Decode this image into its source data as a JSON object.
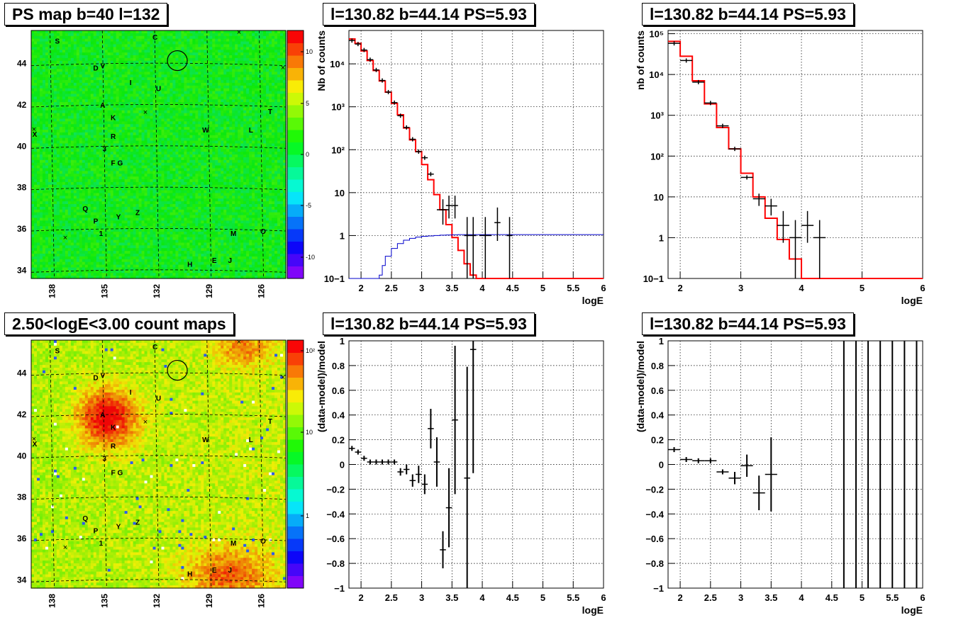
{
  "panels": {
    "map_top": {
      "title": "PS map b=40 l=132"
    },
    "spec_mid": {
      "title": "l=130.82 b=44.14 PS=5.93"
    },
    "spec_right": {
      "title": "l=130.82 b=44.14 PS=5.93"
    },
    "map_bottom": {
      "title": "2.50<logE<3.00 count maps"
    },
    "res_mid": {
      "title": "l=130.82 b=44.14 PS=5.93"
    },
    "res_right": {
      "title": "l=130.82 b=44.14 PS=5.93"
    }
  },
  "colors": {
    "model": "#ff0000",
    "background_model": "#0000cc",
    "data": "#000000"
  },
  "chart_data": [
    {
      "id": "map_top",
      "type": "heatmap",
      "title": "PS map b=40 l=132",
      "x_ticks": [
        "138",
        "135",
        "132",
        "129",
        "126"
      ],
      "y_ticks": [
        "34",
        "36",
        "38",
        "40",
        "42",
        "44"
      ],
      "colorbar_ticks": [
        "10",
        "5",
        "0",
        "-5",
        "-10"
      ],
      "colorbar_range": [
        -12,
        12
      ],
      "sources": [
        {
          "label": "S",
          "l": 137.7,
          "b": 45.1
        },
        {
          "label": "C",
          "l": 132.1,
          "b": 45.3
        },
        {
          "label": "D",
          "l": 135.5,
          "b": 43.8
        },
        {
          "label": "V",
          "l": 135.1,
          "b": 43.9
        },
        {
          "label": "I",
          "l": 133.5,
          "b": 43.1
        },
        {
          "label": "U",
          "l": 131.9,
          "b": 42.8
        },
        {
          "label": "A",
          "l": 135.1,
          "b": 42.0
        },
        {
          "label": "T",
          "l": 125.5,
          "b": 41.7
        },
        {
          "label": "K",
          "l": 134.5,
          "b": 41.4
        },
        {
          "label": "W",
          "l": 129.2,
          "b": 40.8
        },
        {
          "label": "L",
          "l": 126.6,
          "b": 40.8
        },
        {
          "label": "R",
          "l": 134.5,
          "b": 40.5
        },
        {
          "label": "X",
          "l": 139.0,
          "b": 40.6
        },
        {
          "label": "3",
          "l": 135.0,
          "b": 39.9
        },
        {
          "label": "F",
          "l": 134.5,
          "b": 39.2
        },
        {
          "label": "G",
          "l": 134.1,
          "b": 39.2
        },
        {
          "label": "Q",
          "l": 136.1,
          "b": 37.0
        },
        {
          "label": "P",
          "l": 135.5,
          "b": 36.4
        },
        {
          "label": "Y",
          "l": 134.2,
          "b": 36.6
        },
        {
          "label": "Z",
          "l": 133.1,
          "b": 36.8
        },
        {
          "label": "1",
          "l": 135.2,
          "b": 35.8
        },
        {
          "label": "M",
          "l": 127.6,
          "b": 35.8
        },
        {
          "label": "O",
          "l": 125.9,
          "b": 35.9
        },
        {
          "label": "H",
          "l": 130.1,
          "b": 34.3
        },
        {
          "label": "E",
          "l": 128.7,
          "b": 34.5
        },
        {
          "label": "J",
          "l": 127.8,
          "b": 34.5
        }
      ],
      "circle": {
        "l": 130.82,
        "b": 44.14
      }
    },
    {
      "id": "spec_mid",
      "type": "line",
      "title": "l=130.82 b=44.14 PS=5.93",
      "xlabel": "logE",
      "ylabel": "Nb of counts",
      "log_y": true,
      "xlim": [
        1.8,
        6.0
      ],
      "ylim": [
        0.1,
        60000
      ],
      "x_ticks": [
        "2",
        "2.5",
        "3",
        "3.5",
        "4",
        "4.5",
        "5",
        "5.5",
        "6"
      ],
      "y_ticks": [
        "10−1",
        "1",
        "10",
        "10²",
        "10³",
        "10⁴"
      ],
      "series": [
        {
          "role": "model",
          "bin_edges": [
            1.8,
            1.9,
            2.0,
            2.1,
            2.2,
            2.3,
            2.4,
            2.5,
            2.6,
            2.7,
            2.8,
            2.9,
            3.0,
            3.1,
            3.2,
            3.3,
            3.4,
            3.5,
            3.6,
            3.7,
            3.8,
            3.9,
            4.0,
            4.1,
            4.2,
            6.0
          ],
          "values": [
            38000,
            30000,
            20000,
            12000,
            7000,
            4000,
            2200,
            1200,
            650,
            320,
            170,
            90,
            45,
            20,
            9,
            4,
            1.8,
            0.9,
            0.45,
            0.22,
            0.12,
            0.1,
            0.1,
            0.1,
            0.1
          ]
        },
        {
          "role": "background",
          "bin_edges": [
            1.8,
            2.3,
            2.35,
            2.4,
            2.5,
            2.6,
            2.7,
            2.8,
            2.9,
            3.0,
            3.1,
            3.2,
            3.3,
            3.4,
            3.5,
            3.6,
            6.0
          ],
          "values": [
            0.1,
            0.12,
            0.2,
            0.33,
            0.5,
            0.65,
            0.78,
            0.86,
            0.92,
            0.96,
            0.98,
            1.0,
            1.02,
            1.03,
            1.04,
            1.05
          ]
        },
        {
          "role": "data",
          "points": [
            {
              "x": 1.85,
              "y": 35000,
              "xerr": 0.05
            },
            {
              "x": 1.95,
              "y": 29000,
              "xerr": 0.05
            },
            {
              "x": 2.05,
              "y": 21000,
              "xerr": 0.05
            },
            {
              "x": 2.15,
              "y": 12500,
              "xerr": 0.05
            },
            {
              "x": 2.25,
              "y": 7200,
              "xerr": 0.05
            },
            {
              "x": 2.35,
              "y": 4100,
              "xerr": 0.05
            },
            {
              "x": 2.45,
              "y": 2200,
              "xerr": 0.05
            },
            {
              "x": 2.55,
              "y": 1250,
              "xerr": 0.05
            },
            {
              "x": 2.65,
              "y": 620,
              "xerr": 0.05
            },
            {
              "x": 2.75,
              "y": 330,
              "xerr": 0.05
            },
            {
              "x": 2.85,
              "y": 175,
              "xerr": 0.05
            },
            {
              "x": 2.95,
              "y": 90,
              "xerr": 0.05
            },
            {
              "x": 3.05,
              "y": 65,
              "xerr": 0.05
            },
            {
              "x": 3.15,
              "y": 27,
              "xerr": 0.05
            },
            {
              "x": 3.35,
              "y": 4,
              "xerr": 0.1,
              "ylo": 1.8,
              "yhi": 7
            },
            {
              "x": 3.45,
              "y": 5,
              "xerr": 0.05,
              "ylo": 2.5,
              "yhi": 8.5
            },
            {
              "x": 3.55,
              "y": 5,
              "xerr": 0.05,
              "ylo": 2.5,
              "yhi": 8.5
            },
            {
              "x": 3.75,
              "y": 1,
              "xerr": 0.05,
              "ylo": 0.1,
              "yhi": 2.7
            },
            {
              "x": 3.85,
              "y": 1,
              "xerr": 0.05,
              "ylo": 0.1,
              "yhi": 2.7
            },
            {
              "x": 4.05,
              "y": 1,
              "xerr": 0.1,
              "ylo": 0.1,
              "yhi": 2.7
            },
            {
              "x": 4.25,
              "y": 2,
              "xerr": 0.05,
              "ylo": 0.75,
              "yhi": 4.5
            },
            {
              "x": 4.45,
              "y": 1,
              "xerr": 0.05,
              "ylo": 0.1,
              "yhi": 2.7
            }
          ]
        }
      ]
    },
    {
      "id": "spec_right",
      "type": "line",
      "title": "l=130.82 b=44.14 PS=5.93",
      "xlabel": "logE",
      "ylabel": "nb of counts",
      "log_y": true,
      "xlim": [
        1.8,
        6.0
      ],
      "ylim": [
        0.1,
        120000
      ],
      "x_ticks": [
        "2",
        "3",
        "4",
        "5",
        "6"
      ],
      "y_ticks": [
        "10−1",
        "1",
        "10",
        "10²",
        "10³",
        "10⁴",
        "10⁵"
      ],
      "series": [
        {
          "role": "model",
          "bin_edges": [
            1.8,
            2.0,
            2.2,
            2.4,
            2.6,
            2.8,
            3.0,
            3.2,
            3.4,
            3.6,
            3.8,
            4.0,
            4.2,
            6.0
          ],
          "values": [
            65000,
            28000,
            7000,
            1900,
            500,
            150,
            38,
            10,
            3,
            0.9,
            0.3,
            0.1,
            0.1
          ]
        },
        {
          "role": "data",
          "points": [
            {
              "x": 1.9,
              "y": 58000,
              "xerr": 0.1
            },
            {
              "x": 2.1,
              "y": 22000,
              "xerr": 0.1
            },
            {
              "x": 2.3,
              "y": 6500,
              "xerr": 0.1
            },
            {
              "x": 2.5,
              "y": 2000,
              "xerr": 0.1
            },
            {
              "x": 2.7,
              "y": 550,
              "xerr": 0.1
            },
            {
              "x": 2.9,
              "y": 150,
              "xerr": 0.1
            },
            {
              "x": 3.1,
              "y": 30,
              "xerr": 0.1
            },
            {
              "x": 3.3,
              "y": 9,
              "xerr": 0.1,
              "ylo": 6,
              "yhi": 12
            },
            {
              "x": 3.5,
              "y": 6,
              "xerr": 0.1,
              "ylo": 3.5,
              "yhi": 9
            },
            {
              "x": 3.7,
              "y": 2,
              "xerr": 0.1,
              "ylo": 0.75,
              "yhi": 4.5
            },
            {
              "x": 3.9,
              "y": 1,
              "xerr": 0.1,
              "ylo": 0.1,
              "yhi": 2.7
            },
            {
              "x": 4.1,
              "y": 2,
              "xerr": 0.1,
              "ylo": 0.75,
              "yhi": 4.5
            },
            {
              "x": 4.3,
              "y": 1,
              "xerr": 0.1,
              "ylo": 0.1,
              "yhi": 2.7
            }
          ]
        }
      ]
    },
    {
      "id": "map_bottom",
      "type": "heatmap",
      "title": "2.50<logE<3.00 count maps",
      "x_ticks": [
        "138",
        "135",
        "132",
        "129",
        "126"
      ],
      "y_ticks": [
        "34",
        "36",
        "38",
        "40",
        "42",
        "44"
      ],
      "colorbar_ticks": [
        "10²",
        "10",
        "1"
      ],
      "log_color": true
    },
    {
      "id": "res_mid",
      "type": "scatter",
      "title": "l=130.82 b=44.14 PS=5.93",
      "xlabel": "logE",
      "ylabel": "(data-model)/model",
      "xlim": [
        1.8,
        6.0
      ],
      "ylim": [
        -1,
        1
      ],
      "x_ticks": [
        "2",
        "2.5",
        "3",
        "3.5",
        "4",
        "4.5",
        "5",
        "5.5",
        "6"
      ],
      "y_ticks": [
        "1",
        "0.8",
        "0.6",
        "0.4",
        "0.2",
        "0",
        "-0.2",
        "-0.4",
        "-0.6",
        "-0.8",
        "-1"
      ],
      "points": [
        {
          "x": 1.85,
          "y": 0.13,
          "xerr": 0.05,
          "yerr": 0.02
        },
        {
          "x": 1.95,
          "y": 0.1,
          "xerr": 0.05,
          "yerr": 0.02
        },
        {
          "x": 2.05,
          "y": 0.05,
          "xerr": 0.05,
          "yerr": 0.02
        },
        {
          "x": 2.15,
          "y": 0.02,
          "xerr": 0.05,
          "yerr": 0.02
        },
        {
          "x": 2.25,
          "y": 0.02,
          "xerr": 0.05,
          "yerr": 0.02
        },
        {
          "x": 2.35,
          "y": 0.02,
          "xerr": 0.05,
          "yerr": 0.02
        },
        {
          "x": 2.45,
          "y": 0.02,
          "xerr": 0.05,
          "yerr": 0.02
        },
        {
          "x": 2.55,
          "y": 0.02,
          "xerr": 0.05,
          "yerr": 0.02
        },
        {
          "x": 2.65,
          "y": -0.06,
          "xerr": 0.05,
          "yerr": 0.03
        },
        {
          "x": 2.75,
          "y": -0.04,
          "xerr": 0.05,
          "yerr": 0.04
        },
        {
          "x": 2.85,
          "y": -0.13,
          "xerr": 0.05,
          "yerr": 0.05
        },
        {
          "x": 2.95,
          "y": -0.08,
          "xerr": 0.05,
          "yerr": 0.07
        },
        {
          "x": 3.05,
          "y": -0.16,
          "xerr": 0.05,
          "yerr": 0.08
        },
        {
          "x": 3.15,
          "y": 0.29,
          "xerr": 0.05,
          "yerr": 0.16
        },
        {
          "x": 3.25,
          "y": 0.02,
          "xerr": 0.05,
          "yerr": 0.2
        },
        {
          "x": 3.35,
          "y": -0.69,
          "xerr": 0.05,
          "yerr": 0.15
        },
        {
          "x": 3.45,
          "y": -0.35,
          "xerr": 0.05,
          "yerr": 0.32
        },
        {
          "x": 3.55,
          "y": 0.36,
          "xerr": 0.05,
          "yerr": 0.6
        },
        {
          "x": 3.75,
          "y": -0.11,
          "xerr": 0.05,
          "yerr": 0.9
        },
        {
          "x": 3.85,
          "y": 0.93,
          "xerr": 0.05,
          "yerr": 1.0
        }
      ]
    },
    {
      "id": "res_right",
      "type": "scatter",
      "title": "l=130.82 b=44.14 PS=5.93",
      "xlabel": "logE",
      "ylabel": "(data-model)/model",
      "xlim": [
        1.8,
        6.0
      ],
      "ylim": [
        -1,
        1
      ],
      "x_ticks": [
        "2",
        "2.5",
        "3",
        "3.5",
        "4",
        "4.5",
        "5",
        "5.5",
        "6"
      ],
      "y_ticks": [
        "1",
        "0.8",
        "0.6",
        "0.4",
        "0.2",
        "0",
        "-0.2",
        "-0.4",
        "-0.6",
        "-0.8",
        "-1"
      ],
      "points": [
        {
          "x": 1.9,
          "y": 0.12,
          "xerr": 0.1,
          "yerr": 0.02
        },
        {
          "x": 2.1,
          "y": 0.04,
          "xerr": 0.1,
          "yerr": 0.02
        },
        {
          "x": 2.3,
          "y": 0.03,
          "xerr": 0.1,
          "yerr": 0.02
        },
        {
          "x": 2.5,
          "y": 0.03,
          "xerr": 0.1,
          "yerr": 0.02
        },
        {
          "x": 2.7,
          "y": -0.06,
          "xerr": 0.1,
          "yerr": 0.02
        },
        {
          "x": 2.9,
          "y": -0.11,
          "xerr": 0.1,
          "yerr": 0.05
        },
        {
          "x": 3.1,
          "y": -0.01,
          "xerr": 0.1,
          "yerr": 0.09
        },
        {
          "x": 3.3,
          "y": -0.23,
          "xerr": 0.1,
          "yerr": 0.14
        },
        {
          "x": 3.5,
          "y": -0.08,
          "xerr": 0.1,
          "yerr": 0.3
        },
        {
          "x": 4.7,
          "y": 0,
          "xerr": 0,
          "yerr": 2
        },
        {
          "x": 4.9,
          "y": 0,
          "xerr": 0,
          "yerr": 2
        },
        {
          "x": 5.1,
          "y": 0,
          "xerr": 0,
          "yerr": 2
        },
        {
          "x": 5.3,
          "y": 0,
          "xerr": 0,
          "yerr": 2
        },
        {
          "x": 5.5,
          "y": 0,
          "xerr": 0,
          "yerr": 2
        },
        {
          "x": 5.7,
          "y": 0,
          "xerr": 0,
          "yerr": 2
        },
        {
          "x": 5.9,
          "y": 0,
          "xerr": 0,
          "yerr": 2
        }
      ]
    }
  ]
}
